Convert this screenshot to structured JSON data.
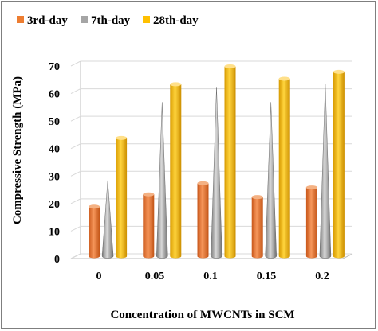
{
  "chart_data": {
    "type": "bar",
    "title": "",
    "xlabel": "Concentration of MWCNTs in SCM",
    "ylabel": "Compressive Strength (MPa)",
    "categories": [
      "0",
      "0.05",
      "0.1",
      "0.15",
      "0.2"
    ],
    "ylim": [
      0,
      70
    ],
    "yticks": [
      "0",
      "10",
      "20",
      "30",
      "40",
      "50",
      "60",
      "70"
    ],
    "grid": true,
    "legend_position": "top-left",
    "series": [
      {
        "name": "3rd-day",
        "shape": "cylinder",
        "color": "#ED7D31",
        "values": [
          18,
          22.5,
          26.5,
          21.5,
          25
        ]
      },
      {
        "name": "7th-day",
        "shape": "cone",
        "color": "#A5A5A5",
        "values": [
          27.5,
          56,
          61.5,
          56,
          62.5
        ]
      },
      {
        "name": "28th-day",
        "shape": "cylinder",
        "color": "#FFC000",
        "values": [
          43,
          62.5,
          69,
          64.5,
          67
        ]
      }
    ]
  }
}
